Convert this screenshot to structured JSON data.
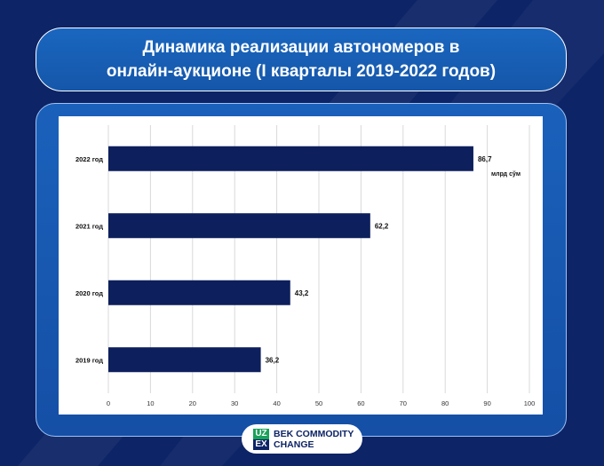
{
  "title": "Динамика реализации автономеров в\nонлайн-аукционе (I кварталы 2019-2022 годов)",
  "brand": {
    "mark_top": "UZ",
    "mark_bottom": "EX",
    "line1": "BEK COMMODITY",
    "line2": "CHANGE"
  },
  "colors": {
    "background": "#0d2466",
    "accent": "#1a66bf",
    "bar": "#0d1f5c",
    "brand_green": "#19a25a"
  },
  "chart_data": {
    "type": "bar",
    "orientation": "horizontal",
    "categories": [
      "2022 год",
      "2021 год",
      "2020 год",
      "2019 год"
    ],
    "values": [
      86.7,
      62.2,
      43.2,
      36.2
    ],
    "value_labels": [
      "86,7",
      "62,2",
      "43,2",
      "36,2"
    ],
    "unit_label": "млрд сўм",
    "xlim": [
      0,
      100
    ],
    "xticks": [
      0,
      10,
      20,
      30,
      40,
      50,
      60,
      70,
      80,
      90,
      100
    ],
    "grid": true,
    "legend": "none"
  }
}
